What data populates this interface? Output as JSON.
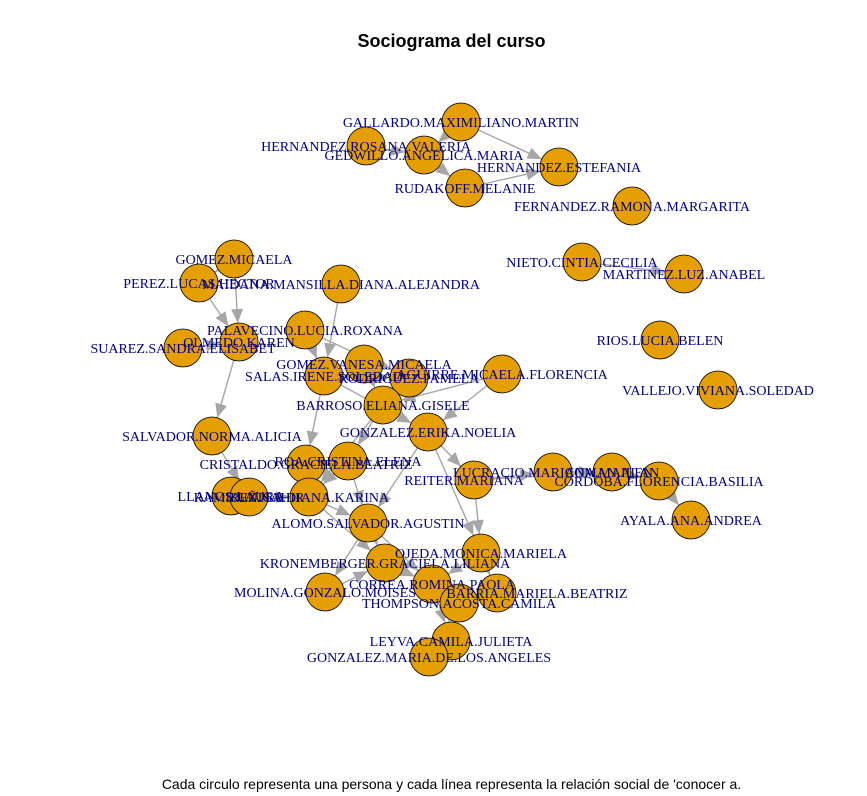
{
  "title": "Sociograma del curso",
  "caption": "Cada circulo representa una persona y cada línea representa la relación social de 'conocer a.",
  "colors": {
    "node_fill": "#E69F00",
    "node_stroke": "#000000",
    "edge": "#A6A6A6",
    "label": "#000080"
  },
  "nodes": [
    {
      "id": "gallardo",
      "label": "GALLARDO.MAXIMILIANO.MARTIN"
    },
    {
      "id": "hernandez_r",
      "label": "HERNANDEZ.ROSANA.VALERIA"
    },
    {
      "id": "gedwillo",
      "label": "GEDWILLO.ANGELICA.MARIA"
    },
    {
      "id": "hernandez_e",
      "label": "HERNANDEZ.ESTEFANIA"
    },
    {
      "id": "rudakoff",
      "label": "RUDAKOFF.MELANIE"
    },
    {
      "id": "fernandez",
      "label": "FERNANDEZ.RAMONA.MARGARITA"
    },
    {
      "id": "nieto",
      "label": "NIETO.CINTIA.CECILIA"
    },
    {
      "id": "martinez",
      "label": "MARTINEZ.LUZ.ANABEL"
    },
    {
      "id": "rios",
      "label": "RIOS.LUCIA.BELEN"
    },
    {
      "id": "vallejo",
      "label": "VALLEJO.VIVIANA.SOLEDAD"
    },
    {
      "id": "gomez_m",
      "label": "GOMEZ.MICAELA"
    },
    {
      "id": "perez",
      "label": "PEREZ.LUCAS.HECTOR"
    },
    {
      "id": "mansilla",
      "label": "MAIDANA.MANSILLA.DIANA.ALEJANDRA"
    },
    {
      "id": "palavecino",
      "label": "PALAVECINO.LUCIA.ROXANA"
    },
    {
      "id": "olmedo",
      "label": "OLMEDO.KAREN"
    },
    {
      "id": "suarez",
      "label": "SUAREZ.SANDRA.ELISABET"
    },
    {
      "id": "gomez_v",
      "label": "GOMEZ.VANESA.MICAELA"
    },
    {
      "id": "salas",
      "label": "SALAS.IRENE.SOLEDAD"
    },
    {
      "id": "rodriguez",
      "label": "RODRIGUEZ.PAMELA"
    },
    {
      "id": "aguirre",
      "label": "AGUIRRE.MICAELA.FLORENCIA"
    },
    {
      "id": "barroso",
      "label": "BARROSO.ELIANA.GISELE"
    },
    {
      "id": "salvador",
      "label": "SALVADOR.NORMA.ALICIA"
    },
    {
      "id": "gonzalez_e",
      "label": "GONZALEZ.ERIKA.NOELIA"
    },
    {
      "id": "cristaldo",
      "label": "CRISTALDO.GRACIELA.BEATRIZ"
    },
    {
      "id": "roa",
      "label": "ROA.CRISTINA.ELENA"
    },
    {
      "id": "llanos",
      "label": "LLANOS.LAURA"
    },
    {
      "id": "ramirez",
      "label": "RAMIREZ.NAHIR"
    },
    {
      "id": "zuniga",
      "label": "ZUÑIGA.DIANA.KARINA"
    },
    {
      "id": "lucracio",
      "label": "LUCRACIO.MARIANA.MAILEN"
    },
    {
      "id": "reiter",
      "label": "REITER.MARIANA"
    },
    {
      "id": "coman",
      "label": "COMAN.ALAN"
    },
    {
      "id": "cordoba",
      "label": "CORDOBA.FLORENCIA.BASILIA"
    },
    {
      "id": "ayala",
      "label": "AYALA.ANA.ANDREA"
    },
    {
      "id": "alomo",
      "label": "ALOMO.SALVADOR.AGUSTIN"
    },
    {
      "id": "ojeda",
      "label": "OJEDA.MONICA.MARIELA"
    },
    {
      "id": "kronemberger",
      "label": "KRONEMBERGER.GRACIELA.LILIANA"
    },
    {
      "id": "correa",
      "label": "CORREA.ROMINA.PAOLA"
    },
    {
      "id": "molina",
      "label": "MOLINA.GONZALO.MOISES"
    },
    {
      "id": "barria",
      "label": "BARRIA.MARIELA.BEATRIZ"
    },
    {
      "id": "thompson",
      "label": "THOMPSON.ACOSTA.CAMILA"
    },
    {
      "id": "leyva",
      "label": "LEYVA.CAMILA.JULIETA"
    },
    {
      "id": "gonzalez_m",
      "label": "GONZALEZ.MARIA.DE.LOS.ANGELES"
    }
  ],
  "edges": [
    [
      "gallardo",
      "gedwillo"
    ],
    [
      "hernandez_r",
      "gedwillo"
    ],
    [
      "gedwillo",
      "rudakoff"
    ],
    [
      "rudakoff",
      "hernandez_e"
    ],
    [
      "gallardo",
      "hernandez_e"
    ],
    [
      "nieto",
      "martinez"
    ],
    [
      "cordoba",
      "ayala"
    ],
    [
      "gomez_m",
      "perez"
    ],
    [
      "gomez_m",
      "olmedo"
    ],
    [
      "perez",
      "olmedo"
    ],
    [
      "suarez",
      "olmedo"
    ],
    [
      "mansilla",
      "salas"
    ],
    [
      "palavecino",
      "salas"
    ],
    [
      "olmedo",
      "salvador"
    ],
    [
      "palavecino",
      "rodriguez"
    ],
    [
      "salas",
      "rodriguez"
    ],
    [
      "gomez_v",
      "barroso"
    ],
    [
      "rodriguez",
      "barroso"
    ],
    [
      "salas",
      "gonzalez_e"
    ],
    [
      "aguirre",
      "barroso"
    ],
    [
      "aguirre",
      "gonzalez_e"
    ],
    [
      "barroso",
      "roa"
    ],
    [
      "gonzalez_e",
      "reiter"
    ],
    [
      "gonzalez_e",
      "ojeda"
    ],
    [
      "salvador",
      "ramirez"
    ],
    [
      "cristaldo",
      "roa"
    ],
    [
      "cristaldo",
      "zuniga"
    ],
    [
      "roa",
      "zuniga"
    ],
    [
      "ramirez",
      "zuniga"
    ],
    [
      "llanos",
      "ramirez"
    ],
    [
      "zuniga",
      "alomo"
    ],
    [
      "zuniga",
      "kronemberger"
    ],
    [
      "alomo",
      "kronemberger"
    ],
    [
      "alomo",
      "correa"
    ],
    [
      "alomo",
      "molina"
    ],
    [
      "ojeda",
      "correa"
    ],
    [
      "ojeda",
      "barria"
    ],
    [
      "reiter",
      "ojeda"
    ],
    [
      "reiter",
      "lucracio"
    ],
    [
      "lucracio",
      "coman"
    ],
    [
      "coman",
      "cordoba"
    ],
    [
      "reiter",
      "coman"
    ],
    [
      "correa",
      "thompson"
    ],
    [
      "correa",
      "leyva"
    ],
    [
      "barria",
      "thompson"
    ],
    [
      "thompson",
      "leyva"
    ],
    [
      "leyva",
      "gonzalez_m"
    ],
    [
      "thompson",
      "gonzalez_m"
    ],
    [
      "kronemberger",
      "correa"
    ],
    [
      "molina",
      "kronemberger"
    ],
    [
      "gonzalez_e",
      "alomo"
    ],
    [
      "barroso",
      "zuniga"
    ],
    [
      "salas",
      "cristaldo"
    ],
    [
      "roa",
      "alomo"
    ]
  ]
}
